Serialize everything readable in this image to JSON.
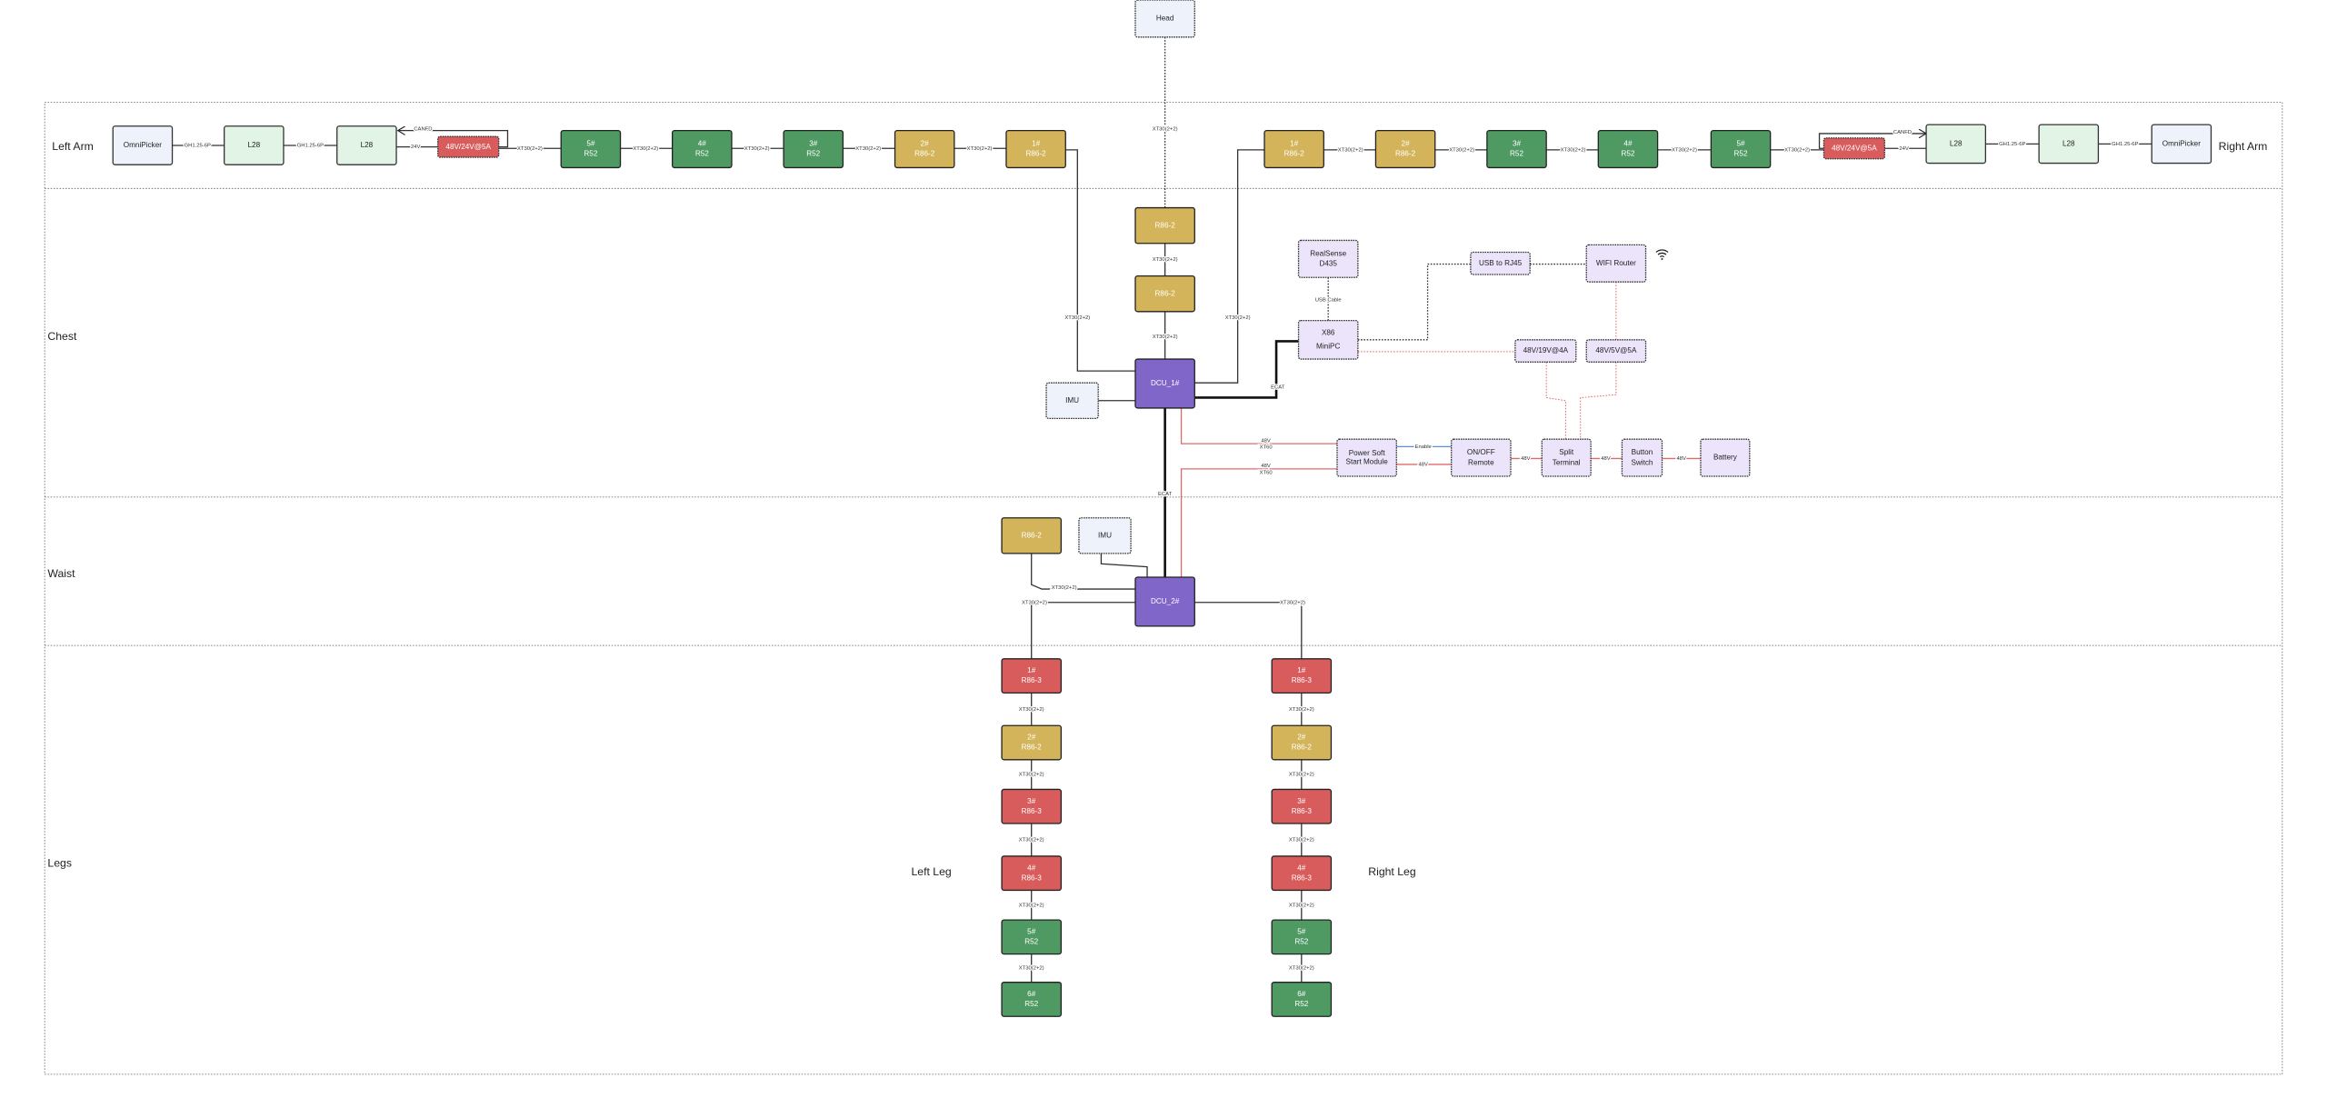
{
  "colors": {
    "green": "#4f9a63",
    "gold": "#d4b45a",
    "red": "#d95c5c",
    "purple": "#8066c8",
    "lavender": "#ebe4fa",
    "light_blue": "#eef3fb",
    "light_green": "#e2f4e5",
    "power_line": "#e06a6a",
    "enable_line": "#5b8fd6"
  },
  "sections": [
    {
      "label": "Left Arm"
    },
    {
      "label": "Right Arm"
    },
    {
      "label": "Chest"
    },
    {
      "label": "Waist"
    },
    {
      "label": "Legs"
    },
    {
      "label": "Left Leg"
    },
    {
      "label": "Right Leg"
    }
  ],
  "nodes": [
    {
      "id": "head",
      "lines": [
        "Head"
      ],
      "kind": "light_blue_dashed"
    },
    {
      "id": "la_omni",
      "lines": [
        "OmniPicker"
      ],
      "kind": "light_blue"
    },
    {
      "id": "la_l28a",
      "lines": [
        "L28"
      ],
      "kind": "light_green"
    },
    {
      "id": "la_l28b",
      "lines": [
        "L28"
      ],
      "kind": "light_green"
    },
    {
      "id": "la_pwr",
      "lines": [
        "48V/24V@5A"
      ],
      "kind": "red_dashed"
    },
    {
      "id": "la_5",
      "lines": [
        "5#",
        "R52"
      ],
      "kind": "green"
    },
    {
      "id": "la_4",
      "lines": [
        "4#",
        "R52"
      ],
      "kind": "green"
    },
    {
      "id": "la_3",
      "lines": [
        "3#",
        "R52"
      ],
      "kind": "green"
    },
    {
      "id": "la_2",
      "lines": [
        "2#",
        "R86-2"
      ],
      "kind": "gold"
    },
    {
      "id": "la_1",
      "lines": [
        "1#",
        "R86-2"
      ],
      "kind": "gold"
    },
    {
      "id": "ra_1",
      "lines": [
        "1#",
        "R86-2"
      ],
      "kind": "gold"
    },
    {
      "id": "ra_2",
      "lines": [
        "2#",
        "R86-2"
      ],
      "kind": "gold"
    },
    {
      "id": "ra_3",
      "lines": [
        "3#",
        "R52"
      ],
      "kind": "green"
    },
    {
      "id": "ra_4",
      "lines": [
        "4#",
        "R52"
      ],
      "kind": "green"
    },
    {
      "id": "ra_5",
      "lines": [
        "5#",
        "R52"
      ],
      "kind": "green"
    },
    {
      "id": "ra_pwr",
      "lines": [
        "48V/24V@5A"
      ],
      "kind": "red_dashed"
    },
    {
      "id": "ra_l28a",
      "lines": [
        "L28"
      ],
      "kind": "light_green"
    },
    {
      "id": "ra_l28b",
      "lines": [
        "L28"
      ],
      "kind": "light_green"
    },
    {
      "id": "ra_omni",
      "lines": [
        "OmniPicker"
      ],
      "kind": "light_blue"
    },
    {
      "id": "ch_r1",
      "lines": [
        "R86-2"
      ],
      "kind": "gold"
    },
    {
      "id": "ch_r2",
      "lines": [
        "R86-2"
      ],
      "kind": "gold"
    },
    {
      "id": "dcu1",
      "lines": [
        "DCU_1#"
      ],
      "kind": "purple"
    },
    {
      "id": "imu1",
      "lines": [
        "IMU"
      ],
      "kind": "light_blue_dashed"
    },
    {
      "id": "realsense",
      "lines": [
        "RealSense",
        "D435"
      ],
      "kind": "lavender"
    },
    {
      "id": "usb_rj45",
      "lines": [
        "USB to RJ45"
      ],
      "kind": "lavender"
    },
    {
      "id": "wifi",
      "lines": [
        "WIFI Router"
      ],
      "kind": "lavender"
    },
    {
      "id": "minipc",
      "lines": [
        "X86",
        "MiniPC"
      ],
      "kind": "lavender"
    },
    {
      "id": "p19",
      "lines": [
        "48V/19V@4A"
      ],
      "kind": "lavender"
    },
    {
      "id": "p5",
      "lines": [
        "48V/5V@5A"
      ],
      "kind": "lavender"
    },
    {
      "id": "pssm",
      "lines": [
        "Power Soft",
        "Start Module"
      ],
      "kind": "lavender"
    },
    {
      "id": "onoff",
      "lines": [
        "ON/OFF",
        "Remote"
      ],
      "kind": "lavender"
    },
    {
      "id": "split",
      "lines": [
        "Split",
        "Terminal"
      ],
      "kind": "lavender"
    },
    {
      "id": "button",
      "lines": [
        "Button",
        "Switch"
      ],
      "kind": "lavender"
    },
    {
      "id": "battery",
      "lines": [
        "Battery"
      ],
      "kind": "lavender"
    },
    {
      "id": "w_r86",
      "lines": [
        "R86-2"
      ],
      "kind": "gold"
    },
    {
      "id": "imu2",
      "lines": [
        "IMU"
      ],
      "kind": "light_blue_dashed"
    },
    {
      "id": "dcu2",
      "lines": [
        "DCU_2#"
      ],
      "kind": "purple"
    },
    {
      "id": "ll_1",
      "lines": [
        "1#",
        "R86-3"
      ],
      "kind": "red"
    },
    {
      "id": "ll_2",
      "lines": [
        "2#",
        "R86-2"
      ],
      "kind": "gold"
    },
    {
      "id": "ll_3",
      "lines": [
        "3#",
        "R86-3"
      ],
      "kind": "red"
    },
    {
      "id": "ll_4",
      "lines": [
        "4#",
        "R86-3"
      ],
      "kind": "red"
    },
    {
      "id": "ll_5",
      "lines": [
        "5#",
        "R52"
      ],
      "kind": "green"
    },
    {
      "id": "ll_6",
      "lines": [
        "6#",
        "R52"
      ],
      "kind": "green"
    },
    {
      "id": "rl_1",
      "lines": [
        "1#",
        "R86-3"
      ],
      "kind": "red"
    },
    {
      "id": "rl_2",
      "lines": [
        "2#",
        "R86-2"
      ],
      "kind": "gold"
    },
    {
      "id": "rl_3",
      "lines": [
        "3#",
        "R86-3"
      ],
      "kind": "red"
    },
    {
      "id": "rl_4",
      "lines": [
        "4#",
        "R86-3"
      ],
      "kind": "red"
    },
    {
      "id": "rl_5",
      "lines": [
        "5#",
        "R52"
      ],
      "kind": "green"
    },
    {
      "id": "rl_6",
      "lines": [
        "6#",
        "R52"
      ],
      "kind": "green"
    }
  ],
  "edges": [
    {
      "label": "GH1.25-6P"
    },
    {
      "label": "GH1.25-6P"
    },
    {
      "label": "24V"
    },
    {
      "label": "CANFD"
    },
    {
      "label": "XT30(2+2)"
    },
    {
      "label": "XT30(2+2)"
    },
    {
      "label": "XT30(2+2)"
    },
    {
      "label": "XT30(2+2)"
    },
    {
      "label": "XT30(2+2)"
    },
    {
      "label": "XT30(2+2)"
    },
    {
      "label": "XT30(2+2)"
    },
    {
      "label": "XT30(2+2)"
    },
    {
      "label": "XT30(2+2)"
    },
    {
      "label": "XT30(2+2)"
    },
    {
      "label": "CANFD"
    },
    {
      "label": "24V"
    },
    {
      "label": "GH1.25-6P"
    },
    {
      "label": "GH1.25-6P"
    },
    {
      "label": "XT30(2+2)"
    },
    {
      "label": "XT30(2+2)"
    },
    {
      "label": "XT30(2+2)"
    },
    {
      "label": "XT30(2+2)"
    },
    {
      "label": "XT30(2+2)"
    },
    {
      "label": ""
    },
    {
      "label": "ECAT"
    },
    {
      "label": "USB Cable"
    },
    {
      "label": ""
    },
    {
      "label": ""
    },
    {
      "label": ""
    },
    {
      "label": ""
    },
    {
      "label": ""
    },
    {
      "label": ""
    },
    {
      "label": "48V\nXT60"
    },
    {
      "label": "48V\nXT60"
    },
    {
      "label": "Enable"
    },
    {
      "label": "48V"
    },
    {
      "label": "48V"
    },
    {
      "label": "48V"
    },
    {
      "label": "48V"
    },
    {
      "label": "ECAT"
    },
    {
      "label": "XT30(2+2)"
    },
    {
      "label": ""
    },
    {
      "label": "XT30(2+2)"
    },
    {
      "label": "XT30(2+2)"
    },
    {
      "label": "XT30(2+2)"
    },
    {
      "label": "XT30(2+2)"
    },
    {
      "label": "XT30(2+2)"
    },
    {
      "label": "XT30(2+2)"
    },
    {
      "label": "XT30(2+2)"
    },
    {
      "label": "XT30(2+2)"
    },
    {
      "label": "XT30(2+2)"
    },
    {
      "label": "XT30(2+2)"
    },
    {
      "label": "XT30(2+2)"
    },
    {
      "label": "XT30(2+2)"
    }
  ],
  "icons": {
    "wifi": "wifi-icon"
  }
}
